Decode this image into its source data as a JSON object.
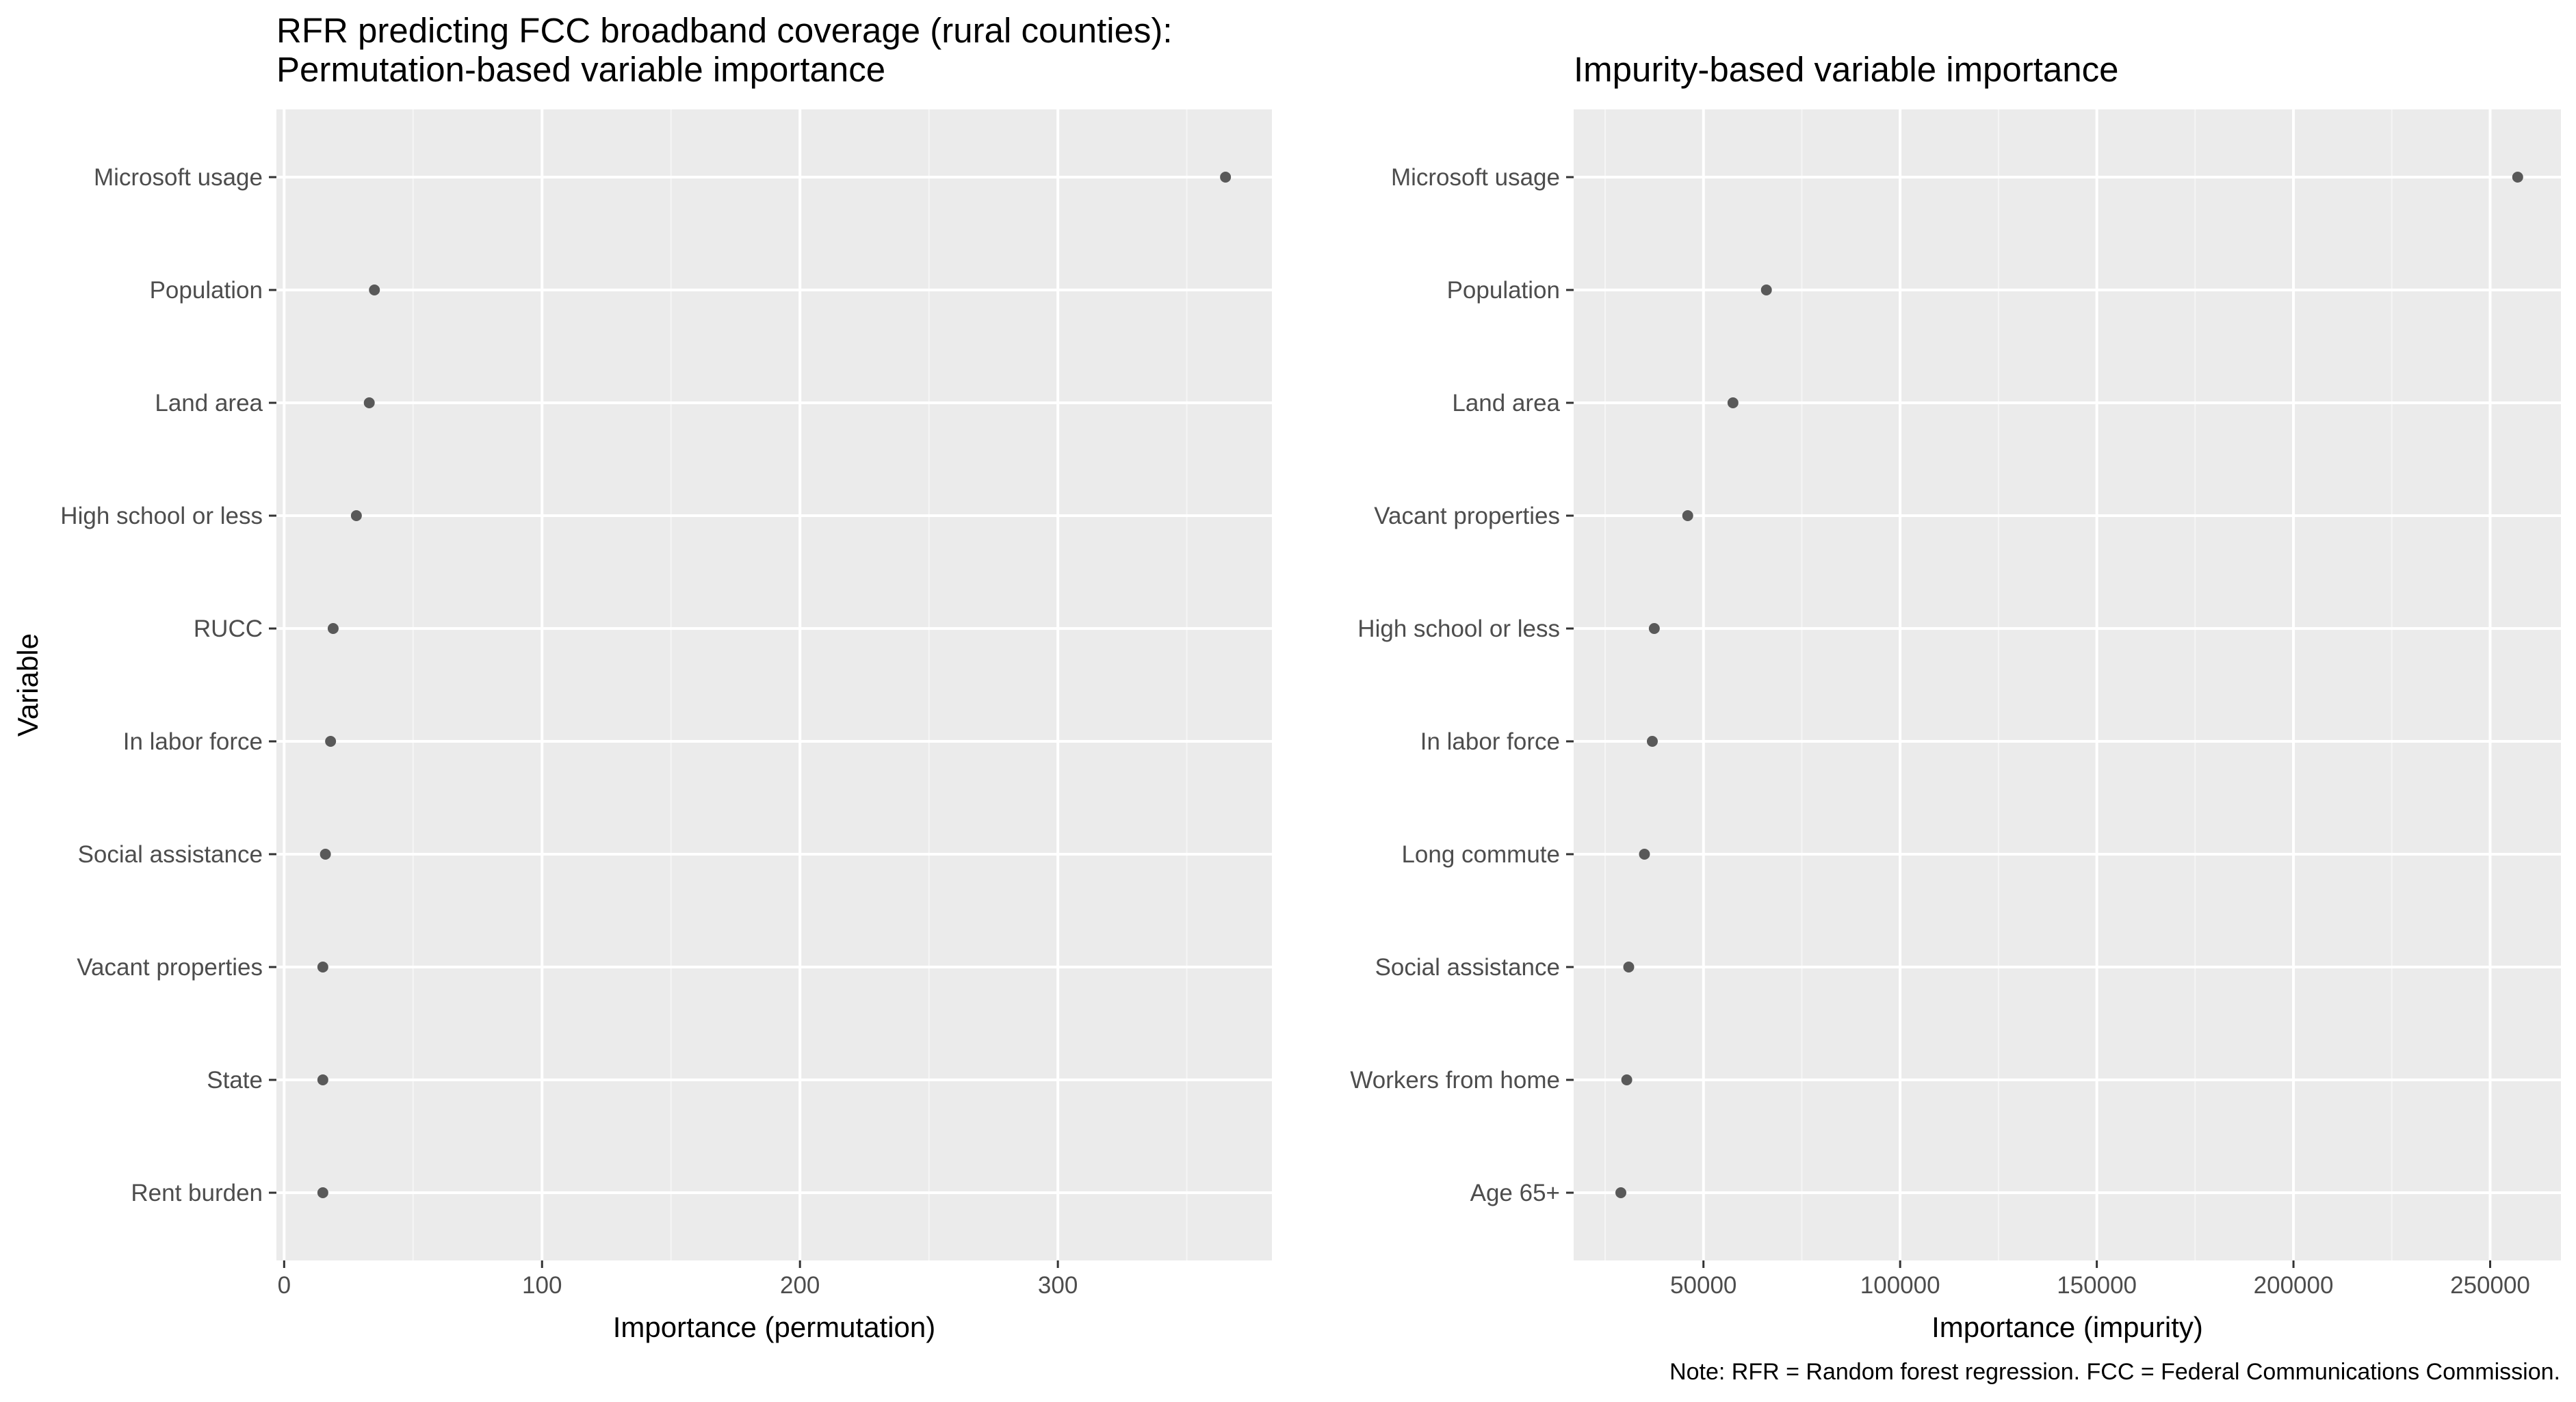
{
  "figure": {
    "caption": "Note: RFR = Random forest regression. FCC = Federal Communications Commission.",
    "colors": {
      "panel_background": "#ebebeb",
      "grid_major": "#ffffff",
      "grid_minor": "#f5f5f5",
      "point": "#595959",
      "tick_text": "#4d4d4d",
      "tick_mark": "#333333"
    }
  },
  "chart_data": [
    {
      "type": "scatter",
      "title_lines": [
        "RFR predicting FCC broadband coverage (rural counties):",
        "Permutation-based variable importance"
      ],
      "xlabel": "Importance (permutation)",
      "ylabel": "Variable",
      "xlim": [
        -3,
        383
      ],
      "xticks": [
        0,
        100,
        200,
        300
      ],
      "x_minor": [
        50,
        150,
        250,
        350
      ],
      "tick_labels": [
        "0",
        "100",
        "200",
        "300"
      ],
      "grid": true,
      "legend": "none",
      "categories": [
        "Microsoft usage",
        "Population",
        "Land area",
        "High school or less",
        "RUCC",
        "In labor force",
        "Social assistance",
        "Vacant properties",
        "State",
        "Rent burden"
      ],
      "values": [
        365,
        35,
        33,
        28,
        19,
        18,
        16,
        15,
        15,
        15
      ]
    },
    {
      "type": "scatter",
      "title_lines": [
        "Impurity-based variable importance"
      ],
      "xlabel": "Importance (impurity)",
      "ylabel": "",
      "xlim": [
        17000,
        268000
      ],
      "xticks": [
        50000,
        100000,
        150000,
        200000,
        250000
      ],
      "x_minor": [
        25000,
        75000,
        125000,
        175000,
        225000
      ],
      "tick_labels": [
        "50000",
        "100000",
        "150000",
        "200000",
        "250000"
      ],
      "grid": true,
      "legend": "none",
      "categories": [
        "Microsoft usage",
        "Population",
        "Land area",
        "Vacant properties",
        "High school or less",
        "In labor force",
        "Long commute",
        "Social assistance",
        "Workers from home",
        "Age 65+"
      ],
      "values": [
        257000,
        66000,
        57500,
        46000,
        37500,
        37000,
        35000,
        31000,
        30500,
        29000
      ]
    }
  ]
}
